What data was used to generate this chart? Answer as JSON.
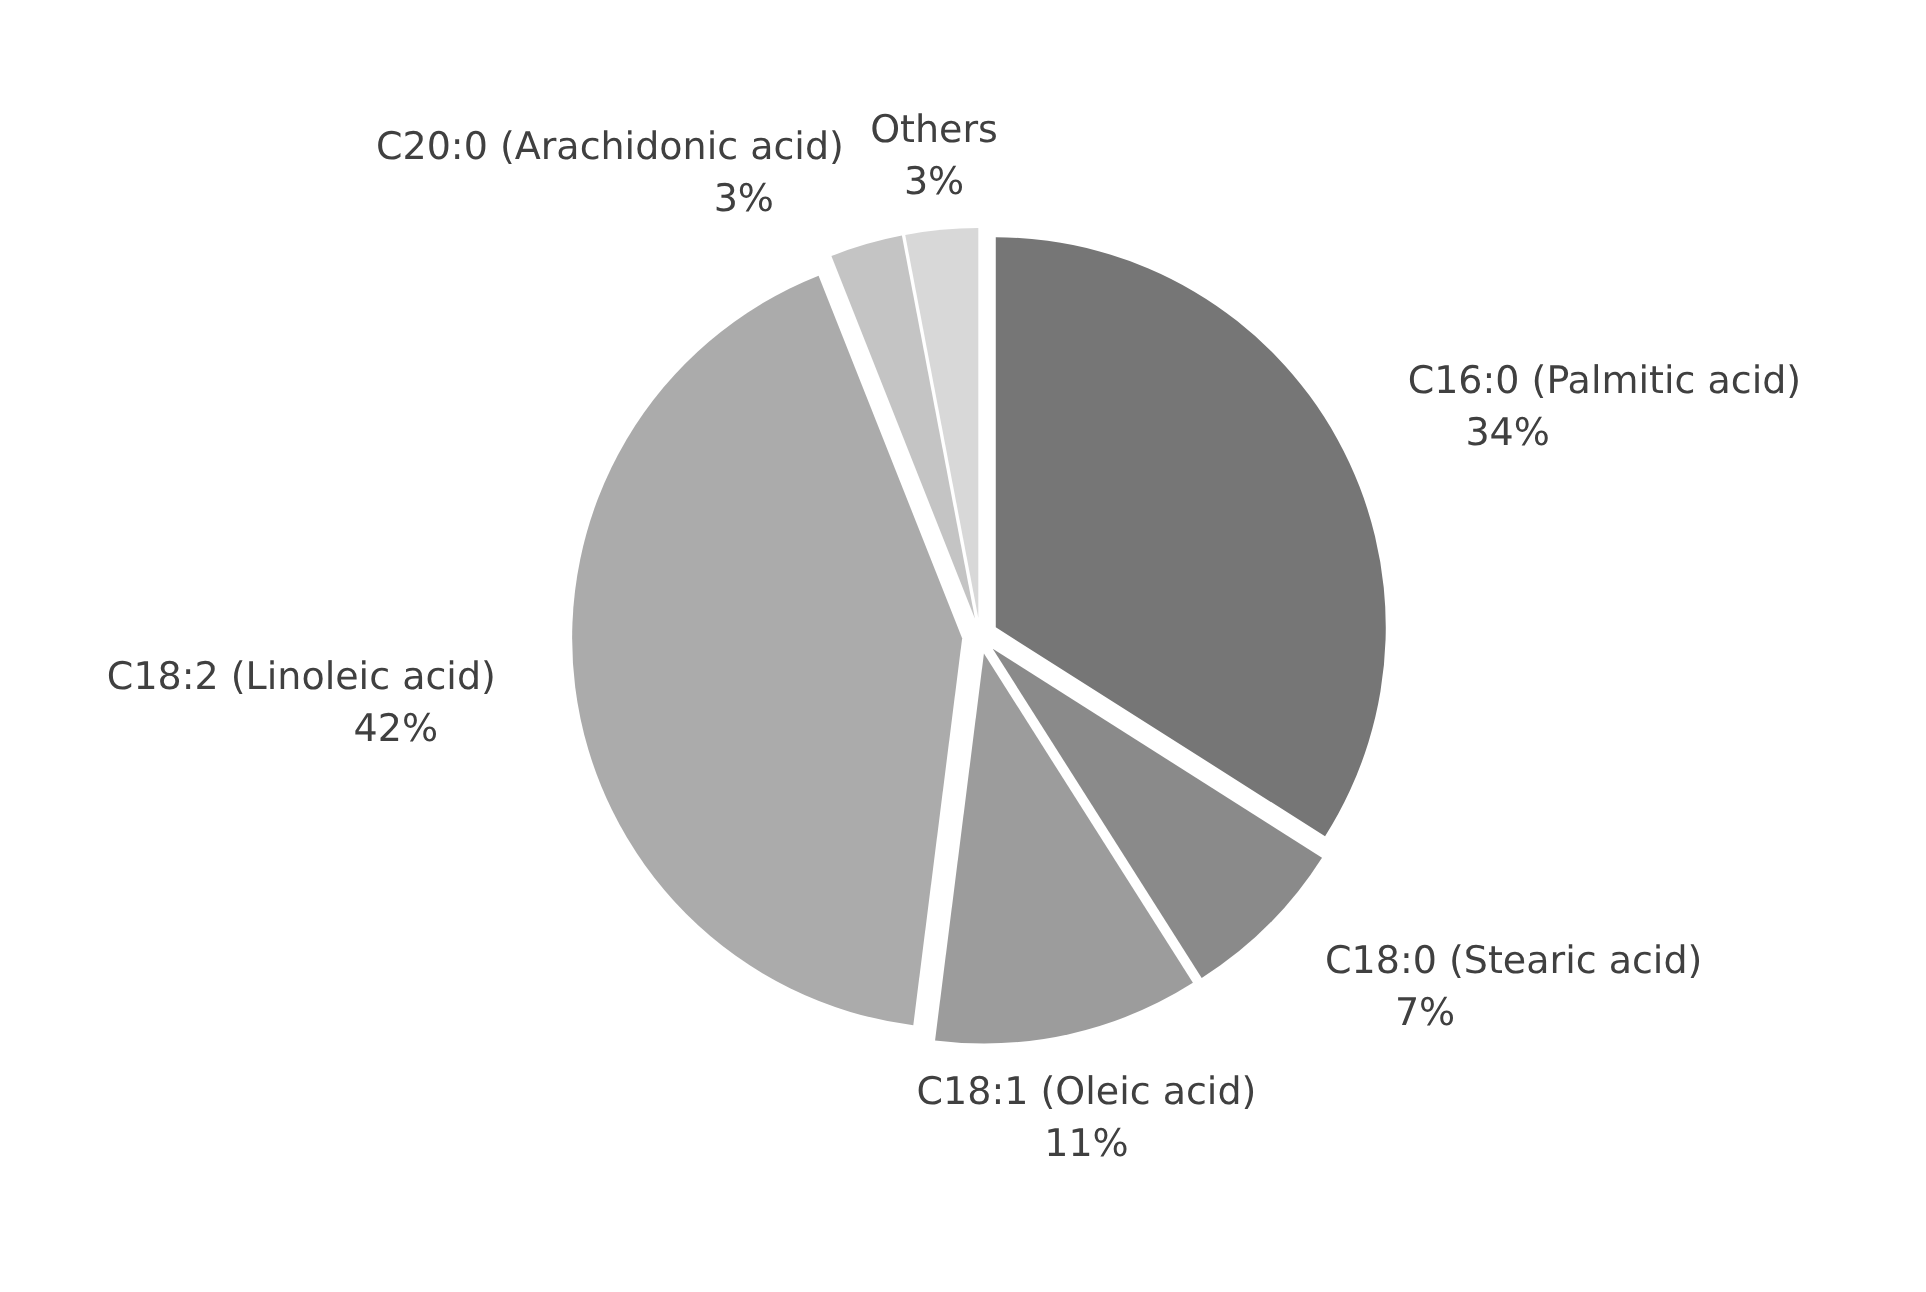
{
  "chart_data": {
    "type": "pie",
    "categories": [
      "C16:0 (Palmitic acid)",
      "C18:0 (Stearic acid)",
      "C18:1 (Oleic acid)",
      "C18:2 (Linoleic acid)",
      "C20:0 (Arachidonic acid)",
      "Others"
    ],
    "values": [
      34,
      7,
      11,
      42,
      3,
      3
    ],
    "value_labels": [
      "34%",
      "7%",
      "11%",
      "42%",
      "3%",
      "3%"
    ],
    "colors": [
      "#767676",
      "#8a8a8a",
      "#9c9c9c",
      "#ababab",
      "#c4c4c4",
      "#d8d8d8"
    ]
  }
}
